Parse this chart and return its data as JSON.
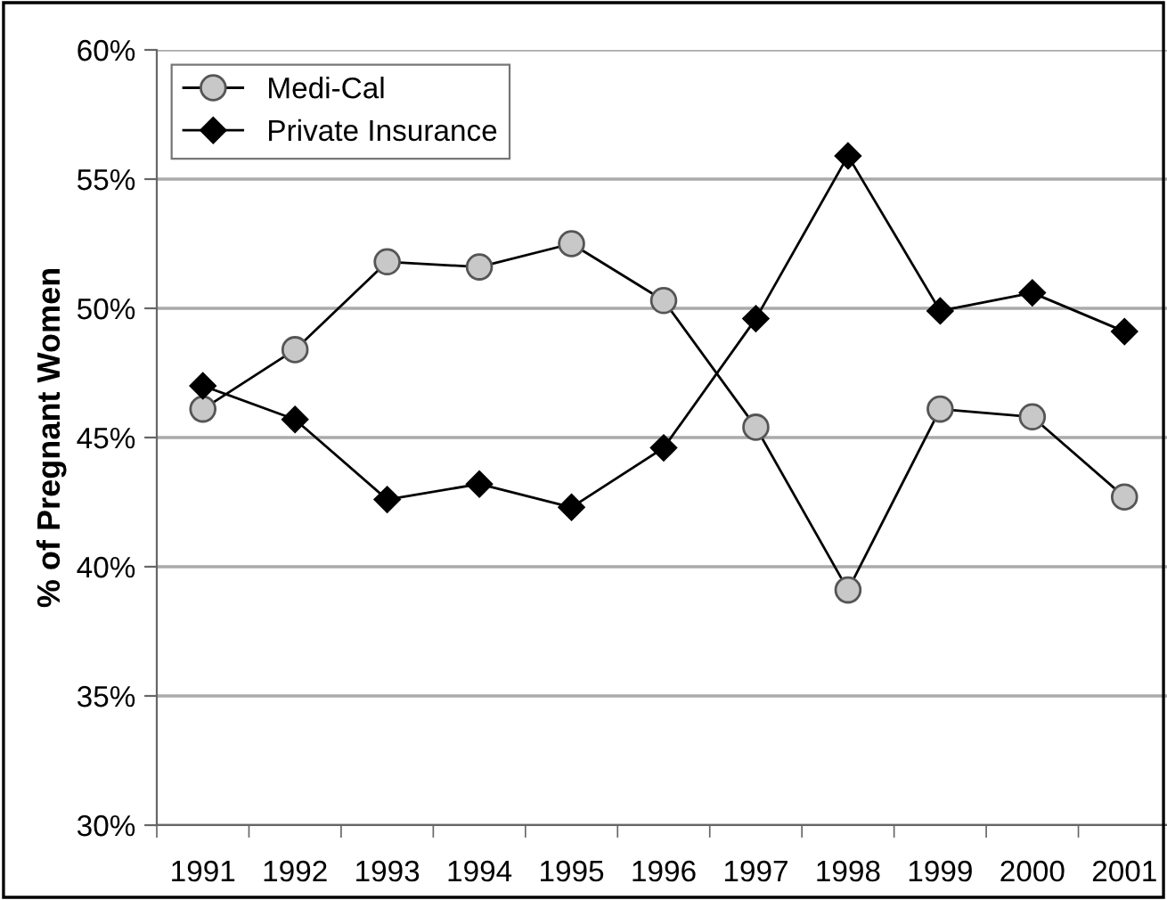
{
  "chart_data": {
    "type": "line",
    "ylabel": "% of Pregnant Women",
    "categories": [
      "1991",
      "1992",
      "1993",
      "1994",
      "1995",
      "1996",
      "1997",
      "1998",
      "1999",
      "2000",
      "2001"
    ],
    "series": [
      {
        "name": "Medi-Cal",
        "color": "#c8c8c8",
        "marker": "circle",
        "values": [
          46.1,
          48.4,
          51.8,
          51.6,
          52.5,
          50.3,
          45.4,
          39.1,
          46.1,
          45.8,
          42.7
        ]
      },
      {
        "name": "Private Insurance",
        "color": "#000000",
        "marker": "diamond",
        "values": [
          47.0,
          45.7,
          42.6,
          43.2,
          42.3,
          44.6,
          49.6,
          55.9,
          49.9,
          50.6,
          49.1
        ]
      }
    ],
    "ylim": [
      30,
      60
    ],
    "yticks": [
      {
        "value": 30,
        "label": "30%"
      },
      {
        "value": 35,
        "label": "35%"
      },
      {
        "value": 40,
        "label": "40%"
      },
      {
        "value": 45,
        "label": "45%"
      },
      {
        "value": 50,
        "label": "50%"
      },
      {
        "value": 55,
        "label": "55%"
      },
      {
        "value": 60,
        "label": "60%"
      }
    ],
    "grid": "y",
    "legend": "top left",
    "line_style": "solid"
  }
}
